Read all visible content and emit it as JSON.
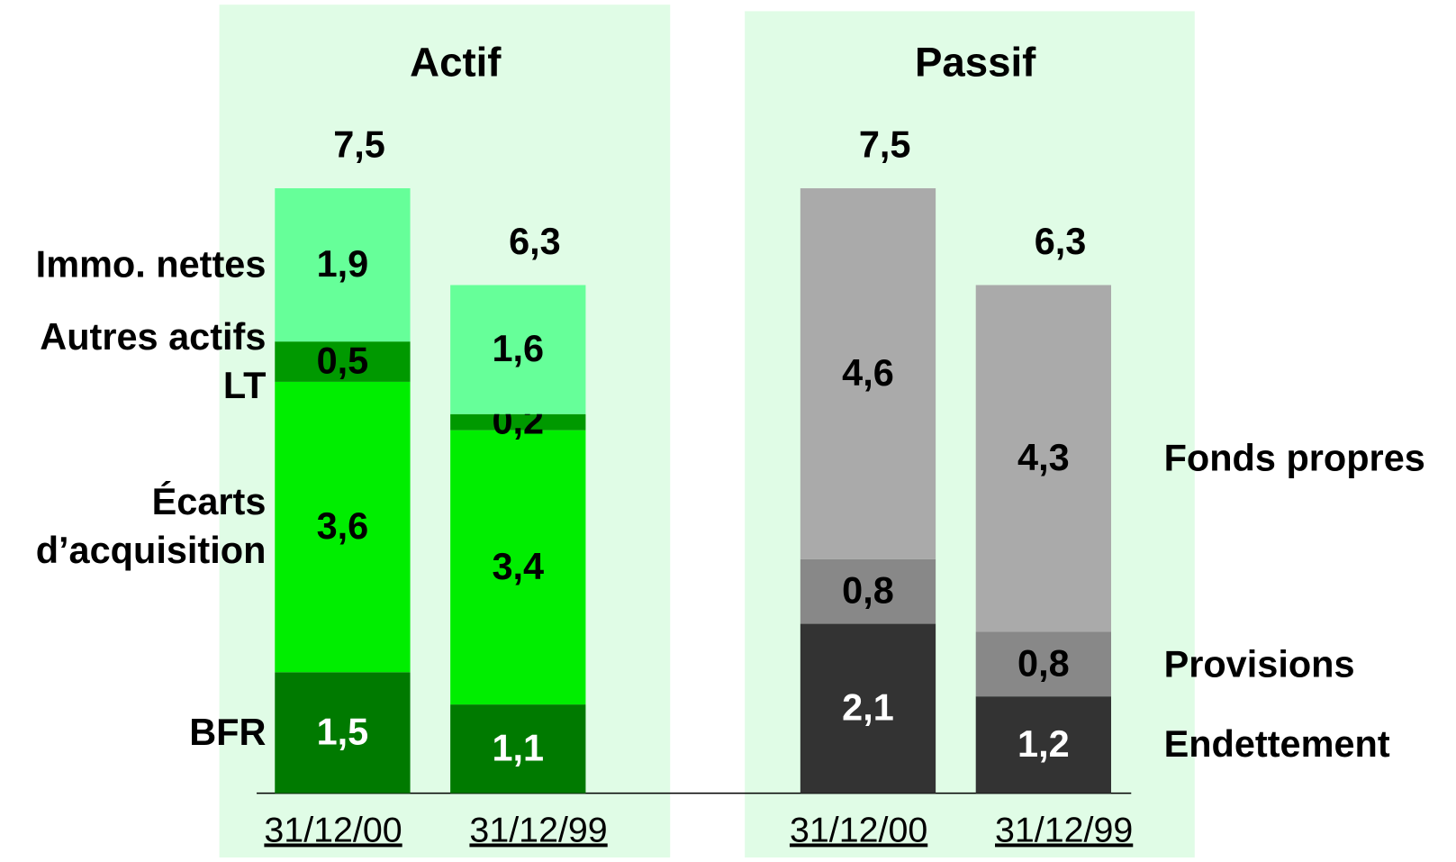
{
  "chart_data": [
    {
      "type": "bar",
      "stacked": true,
      "title": "Actif",
      "legend": "left",
      "categories": [
        "31/12/00",
        "31/12/99"
      ],
      "totals": [
        7.5,
        6.3
      ],
      "totals_labels": [
        "7,5",
        "6,3"
      ],
      "series": [
        {
          "name": "BFR",
          "color": "#007a00",
          "values": [
            1.5,
            1.1
          ],
          "value_labels": [
            "1,5",
            "1,1"
          ]
        },
        {
          "name": "Écarts d’acquisition",
          "color": "#00ee00",
          "values": [
            3.6,
            3.4
          ],
          "value_labels": [
            "3,6",
            "3,4"
          ]
        },
        {
          "name": "Autres actifs LT",
          "color": "#009900",
          "values": [
            0.5,
            0.2
          ],
          "value_labels": [
            "0,5",
            "0,2"
          ]
        },
        {
          "name": "Immo. nettes",
          "color": "#66ff99",
          "values": [
            1.9,
            1.6
          ],
          "value_labels": [
            "1,9",
            "1,6"
          ]
        }
      ]
    },
    {
      "type": "bar",
      "stacked": true,
      "title": "Passif",
      "legend": "right",
      "categories": [
        "31/12/00",
        "31/12/99"
      ],
      "totals": [
        7.5,
        6.3
      ],
      "totals_labels": [
        "7,5",
        "6,3"
      ],
      "series": [
        {
          "name": "Endettement",
          "color": "#333333",
          "values": [
            2.1,
            1.2
          ],
          "value_labels": [
            "2,1",
            "1,2"
          ]
        },
        {
          "name": "Provisions",
          "color": "#888888",
          "values": [
            0.8,
            0.8
          ],
          "value_labels": [
            "0,8",
            "0,8"
          ]
        },
        {
          "name": "Fonds propres",
          "color": "#aaaaaa",
          "values": [
            4.6,
            4.3
          ],
          "value_labels": [
            "4,6",
            "4,3"
          ]
        }
      ]
    }
  ]
}
